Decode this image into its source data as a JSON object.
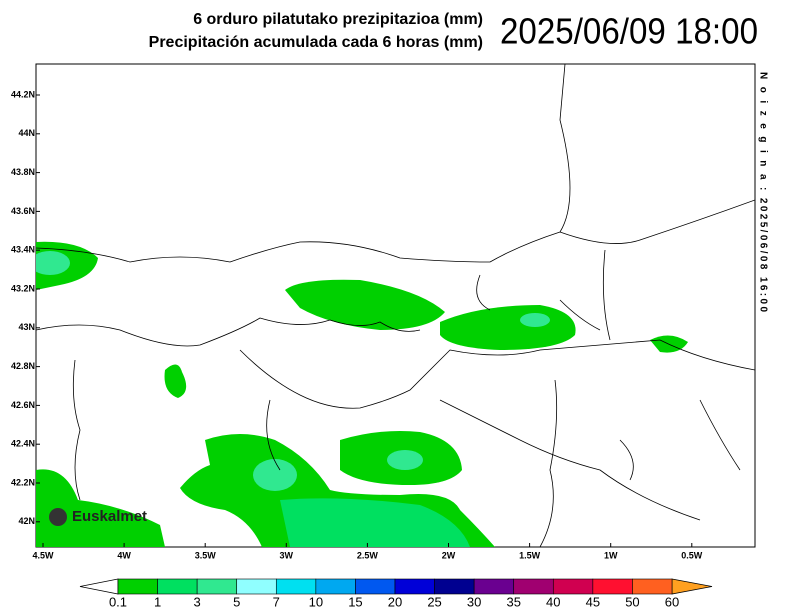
{
  "header": {
    "title_eu": "6 orduro pilatutako prezipitazioa (mm)",
    "title_es": "Precipitación acumulada cada 6 horas (mm)",
    "datetime": "2025/06/09 18:00"
  },
  "side_note": "N o i z   e g i n a :   2025/06/08  16:00",
  "map": {
    "lat_ticks": [
      "44.2N",
      "44N",
      "43.8N",
      "43.6N",
      "43.4N",
      "43.2N",
      "43N",
      "42.8N",
      "42.6N",
      "42.4N",
      "42.2N",
      "42N"
    ],
    "lon_ticks": [
      "4.5W",
      "4W",
      "3.5W",
      "3W",
      "2.5W",
      "2W",
      "1.5W",
      "1W",
      "0.5W"
    ]
  },
  "logo": "Euskalmet",
  "colorbar": {
    "levels": [
      0.1,
      1,
      3,
      5,
      7,
      10,
      15,
      20,
      25,
      30,
      35,
      40,
      45,
      50,
      60
    ],
    "colors": [
      "#00d000",
      "#00e060",
      "#30e890",
      "#90ffff",
      "#00e0f0",
      "#00a8f0",
      "#0058f0",
      "#0000d8",
      "#000090",
      "#6a0090",
      "#a00070",
      "#d00050",
      "#ff1030",
      "#ff6020"
    ],
    "under_color": "#ffffff",
    "over_color": "#ffa020"
  }
}
